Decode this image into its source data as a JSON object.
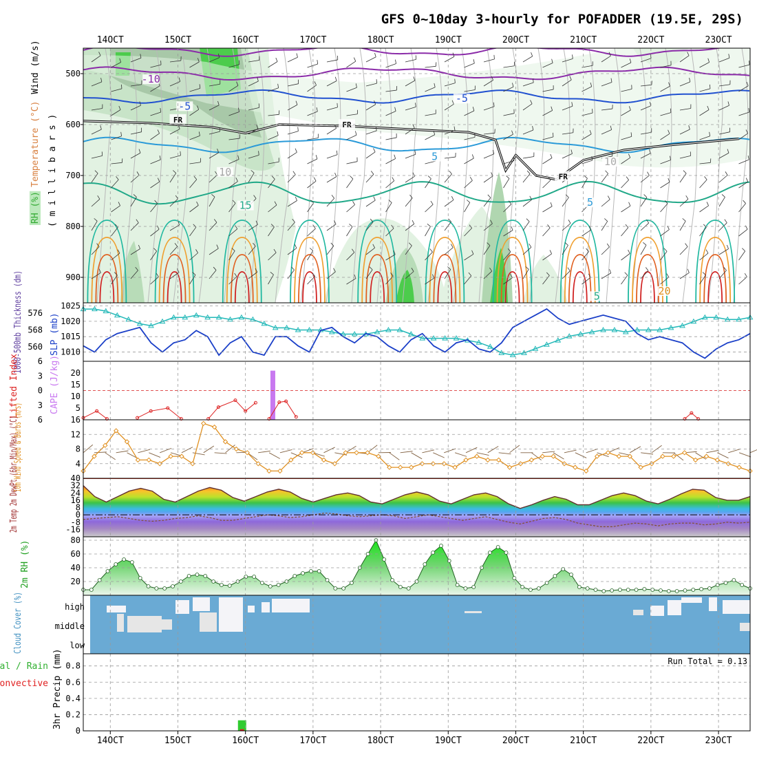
{
  "title": "GFS 0~10day 3-hourly for POFADDER (19.5E, 29S)",
  "x_ticks": [
    "14OCT",
    "15OCT",
    "16OCT",
    "17OCT",
    "18OCT",
    "19OCT",
    "20OCT",
    "21OCT",
    "22OCT",
    "23OCT"
  ],
  "run_total": "Run Total = 0.13",
  "colors": {
    "grid": "#9a9a9a",
    "slp": "#1a3fc8",
    "thick": "#22b8b8",
    "cape": "#c878f0",
    "li": "#dd2222",
    "wind": "#e09020",
    "barb": "#806040",
    "rh": "#2a8a2a",
    "rhfill": "#3ad63a",
    "cloud": "#6aaad4",
    "precip": "#30cc30"
  },
  "chart_data": [
    {
      "type": "heatmap",
      "name": "upper",
      "ylabel_parts": [
        [
          "Wind (m/s)",
          "#000000"
        ],
        [
          "Temperature (°C)",
          "#d88040"
        ],
        [
          "RH (%)",
          "#30a030"
        ]
      ],
      "ylabel2": "( m i l l i b a r s )",
      "yticks": [
        500,
        600,
        700,
        800,
        900
      ],
      "ylim": [
        950,
        450
      ],
      "contour_labels": [
        {
          "text": "-10",
          "day": 14.6,
          "p": 515,
          "color": "#8a2aa8"
        },
        {
          "text": "-5",
          "day": 15.1,
          "p": 568,
          "color": "#2050d0"
        },
        {
          "text": "-5",
          "day": 19.2,
          "p": 553,
          "color": "#2050d0"
        },
        {
          "text": "FR",
          "day": 15.0,
          "p": 593,
          "color": "#000000"
        },
        {
          "text": "FR",
          "day": 17.5,
          "p": 603,
          "color": "#000000"
        },
        {
          "text": "FR",
          "day": 20.7,
          "p": 705,
          "color": "#000000"
        },
        {
          "text": "5",
          "day": 18.8,
          "p": 667,
          "color": "#2a9ad8"
        },
        {
          "text": "5",
          "day": 21.1,
          "p": 757,
          "color": "#2a9ad8"
        },
        {
          "text": "15",
          "day": 16.0,
          "p": 763,
          "color": "#20a888"
        },
        {
          "text": "10",
          "day": 15.7,
          "p": 697,
          "color": "#aaaaaa"
        },
        {
          "text": "10",
          "day": 21.4,
          "p": 677,
          "color": "#aaaaaa"
        },
        {
          "text": "5",
          "day": 21.2,
          "p": 941,
          "color": "#20a888"
        },
        {
          "text": "20",
          "day": 22.2,
          "p": 931,
          "color": "#e09020"
        }
      ]
    },
    {
      "type": "line",
      "name": "slp-thickness",
      "ylabel_left": "1000-500mb Thickness (dm)",
      "ylabel_right": "SLP (mb)",
      "left_ticks": [
        560,
        568,
        576
      ],
      "right_ticks": [
        1010,
        1015,
        1020,
        1025
      ],
      "series": [
        {
          "name": "SLP (mb)",
          "values": [
            1012,
            1010,
            1014,
            1016,
            1017,
            1018,
            1013,
            1010,
            1013,
            1014,
            1017,
            1015,
            1009,
            1013,
            1015,
            1010,
            1009,
            1015,
            1015,
            1012,
            1010,
            1017,
            1018,
            1015,
            1013,
            1016,
            1015,
            1012,
            1010,
            1014,
            1016,
            1012,
            1010,
            1013,
            1014,
            1011,
            1010,
            1013,
            1018,
            1020,
            1022,
            1024,
            1021,
            1019,
            1020,
            1021,
            1022,
            1021,
            1020,
            1016,
            1014,
            1015,
            1014,
            1013,
            1010,
            1008,
            1011,
            1013,
            1014,
            1016
          ]
        },
        {
          "name": "1000-500mb Thickness (dm)",
          "values": [
            578,
            578,
            577,
            575,
            573,
            571,
            570,
            572,
            574,
            574,
            575,
            574,
            574,
            573,
            574,
            573,
            571,
            569,
            569,
            568,
            568,
            568,
            567,
            566,
            566,
            566,
            567,
            568,
            568,
            566,
            564,
            564,
            564,
            564,
            563,
            562,
            560,
            557,
            556,
            557,
            559,
            561,
            563,
            565,
            566,
            567,
            568,
            568,
            567,
            568,
            568,
            568,
            569,
            570,
            572,
            574,
            574,
            573,
            573,
            574
          ]
        }
      ]
    },
    {
      "type": "line",
      "name": "cape-li",
      "ylabel_left": "Lifted Index",
      "ylabel_right": "CAPE (J/kg)",
      "left_ticks": [
        6,
        3,
        0,
        -3,
        -6
      ],
      "right_ticks": [
        5,
        10,
        15,
        20
      ],
      "cape_bars": [
        {
          "day": 16.4,
          "value": 21
        }
      ],
      "li_segments": [
        {
          "days": [
            13.6,
            13.8,
            13.95
          ],
          "values": [
            5.6,
            4.2,
            5.8
          ]
        },
        {
          "days": [
            14.4,
            14.6,
            14.85,
            15.05
          ],
          "values": [
            5.6,
            4.2,
            3.6,
            5.8
          ]
        },
        {
          "days": [
            15.45,
            15.6,
            15.85,
            16.0,
            16.15
          ],
          "values": [
            5.8,
            3.4,
            2.0,
            4.2,
            2.5
          ]
        },
        {
          "days": [
            16.35,
            16.5,
            16.6,
            16.75
          ],
          "values": [
            5.8,
            2.4,
            2.2,
            5.4
          ]
        },
        {
          "days": [
            22.5,
            22.6,
            22.7
          ],
          "values": [
            5.8,
            4.6,
            5.8
          ]
        }
      ]
    },
    {
      "type": "line",
      "name": "wind10m",
      "ylabel": "10m Wind Speed & Barbs (m/s)",
      "yticks": [
        4,
        8,
        12,
        16
      ],
      "series": [
        {
          "name": "10m Wind Speed",
          "values": [
            2,
            6,
            9,
            13,
            10,
            5,
            5,
            4,
            6,
            6,
            4,
            15,
            14,
            10,
            8,
            7,
            4,
            2,
            2,
            5,
            7,
            7,
            5,
            4,
            7,
            7,
            7,
            6,
            3,
            3,
            3,
            4,
            4,
            4,
            3,
            5,
            6,
            5,
            5,
            3,
            4,
            5,
            6,
            6,
            4,
            3,
            2,
            6,
            7,
            6,
            6,
            3,
            4,
            6,
            6,
            7,
            5,
            6,
            5,
            4,
            3,
            2
          ]
        }
      ]
    },
    {
      "type": "area",
      "name": "temp2m",
      "ylabel": "2m Temp 2m DewPt (6hr Min/Max) (°C)",
      "yticks": [
        -16,
        -8,
        0,
        8,
        16,
        24,
        32,
        40
      ],
      "series": [
        {
          "name": "2m Temp",
          "values": [
            32,
            20,
            14,
            20,
            26,
            29,
            26,
            17,
            14,
            20,
            26,
            30,
            27,
            19,
            15,
            20,
            25,
            28,
            25,
            18,
            14,
            18,
            22,
            24,
            21,
            14,
            12,
            17,
            22,
            25,
            22,
            15,
            12,
            17,
            22,
            24,
            20,
            12,
            7,
            11,
            16,
            20,
            17,
            11,
            11,
            16,
            21,
            24,
            21,
            15,
            12,
            17,
            23,
            28,
            27,
            19,
            16,
            16,
            20
          ]
        },
        {
          "name": "2m DewPt",
          "values": [
            -5,
            -4,
            -3,
            -2,
            -4,
            -6,
            -7,
            -6,
            -4,
            -3,
            -1,
            -3,
            -6,
            -6,
            -4,
            -2,
            0,
            -1,
            -3,
            -2,
            0,
            2,
            1,
            -1,
            -2,
            -1,
            0,
            -1,
            -4,
            -2,
            0,
            -2,
            -4,
            -6,
            -4,
            -2,
            -5,
            -8,
            -10,
            -7,
            -4,
            -3,
            -5,
            -9,
            -11,
            -13,
            -13,
            -11,
            -9,
            -10,
            -12,
            -10,
            -9,
            -9,
            -11,
            -10,
            -8,
            -9,
            -8
          ]
        }
      ]
    },
    {
      "type": "area",
      "name": "rh2m",
      "ylabel": "2m RH (%)",
      "yticks": [
        20,
        40,
        60,
        80
      ],
      "series": [
        {
          "name": "2m RH",
          "values": [
            8,
            8,
            22,
            35,
            45,
            52,
            48,
            25,
            13,
            10,
            10,
            13,
            20,
            28,
            30,
            28,
            20,
            15,
            14,
            20,
            27,
            27,
            18,
            13,
            15,
            20,
            28,
            32,
            35,
            35,
            22,
            10,
            10,
            18,
            40,
            60,
            80,
            52,
            22,
            12,
            10,
            20,
            45,
            62,
            72,
            50,
            15,
            10,
            12,
            40,
            62,
            70,
            62,
            25,
            12,
            8,
            10,
            18,
            28,
            38,
            30,
            12,
            10,
            8,
            6,
            7,
            8,
            8,
            8,
            9,
            8,
            7,
            6,
            6,
            7,
            8,
            9,
            10,
            15,
            18,
            22,
            15,
            10
          ]
        }
      ]
    },
    {
      "type": "heatmap",
      "name": "cloud",
      "ylabel": "Cloud Cover (%)",
      "yticks": [
        "high",
        "middle",
        "low"
      ]
    },
    {
      "type": "bar",
      "name": "precip",
      "ylabel_parts": [
        [
          "Total / Rain",
          "#30b030"
        ],
        [
          "Convective",
          "#e02020"
        ]
      ],
      "ylabel2": "3hr Precip (mm)",
      "yticks": [
        0,
        0.2,
        0.4,
        0.6,
        0.8
      ],
      "ylim": [
        0,
        0.95
      ],
      "bars": [
        {
          "day": 15.95,
          "value": 0.13,
          "convective": 0.02
        }
      ]
    }
  ]
}
